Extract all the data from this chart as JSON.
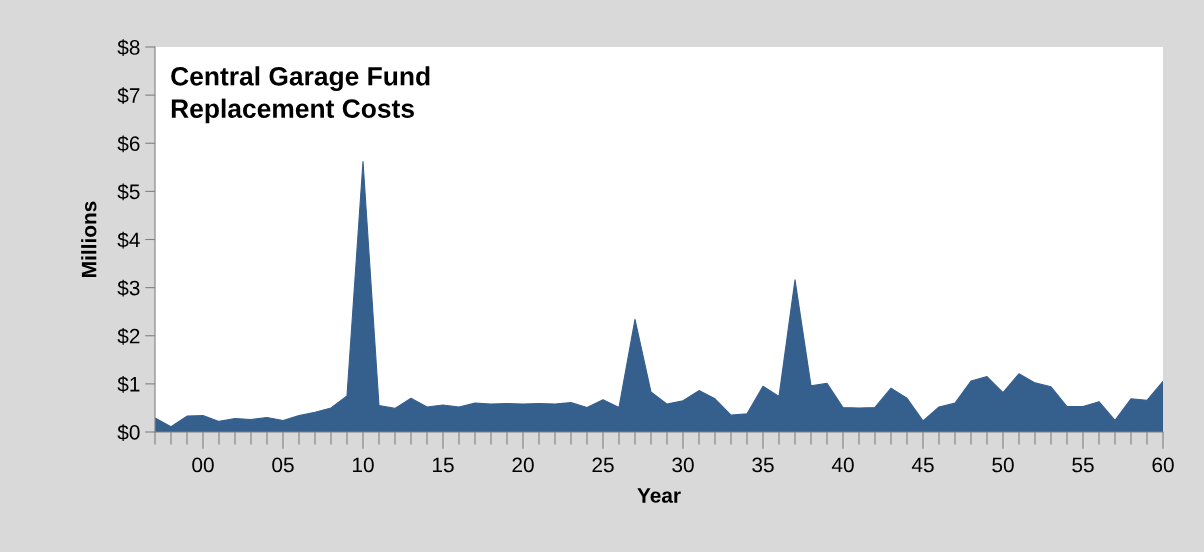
{
  "chart_data": {
    "type": "area",
    "title": "Central Garage Fund\nReplacement Costs",
    "xlabel": "Year",
    "ylabel": "Millions",
    "x": [
      1997,
      1998,
      1999,
      2000,
      2001,
      2002,
      2003,
      2004,
      2005,
      2006,
      2007,
      2008,
      2009,
      2010,
      2011,
      2012,
      2013,
      2014,
      2015,
      2016,
      2017,
      2018,
      2019,
      2020,
      2021,
      2022,
      2023,
      2024,
      2025,
      2026,
      2027,
      2028,
      2029,
      2030,
      2031,
      2032,
      2033,
      2034,
      2035,
      2036,
      2037,
      2038,
      2039,
      2040,
      2041,
      2042,
      2043,
      2044,
      2045,
      2046,
      2047,
      2048,
      2049,
      2050,
      2051,
      2052,
      2053,
      2054,
      2055,
      2056,
      2057,
      2058,
      2059,
      2060
    ],
    "values": [
      0.29,
      0.11,
      0.33,
      0.34,
      0.22,
      0.28,
      0.26,
      0.3,
      0.24,
      0.34,
      0.41,
      0.5,
      0.75,
      5.62,
      0.55,
      0.49,
      0.7,
      0.52,
      0.56,
      0.52,
      0.6,
      0.58,
      0.59,
      0.58,
      0.59,
      0.58,
      0.61,
      0.51,
      0.67,
      0.51,
      2.34,
      0.83,
      0.58,
      0.65,
      0.86,
      0.69,
      0.35,
      0.38,
      0.95,
      0.74,
      3.16,
      0.96,
      1.01,
      0.51,
      0.5,
      0.51,
      0.91,
      0.7,
      0.23,
      0.52,
      0.6,
      1.06,
      1.15,
      0.82,
      1.21,
      1.02,
      0.94,
      0.53,
      0.53,
      0.63,
      0.24,
      0.69,
      0.66,
      1.05
    ],
    "color": "#355f8d",
    "xlim": [
      1997,
      2060
    ],
    "xticks": [
      {
        "value": 1997,
        "label": null
      },
      {
        "value": 1998,
        "label": null
      },
      {
        "value": 1999,
        "label": null
      },
      {
        "value": 2000,
        "label": "00"
      },
      {
        "value": 2001,
        "label": null
      },
      {
        "value": 2002,
        "label": null
      },
      {
        "value": 2003,
        "label": null
      },
      {
        "value": 2004,
        "label": null
      },
      {
        "value": 2005,
        "label": "05"
      },
      {
        "value": 2006,
        "label": null
      },
      {
        "value": 2007,
        "label": null
      },
      {
        "value": 2008,
        "label": null
      },
      {
        "value": 2009,
        "label": null
      },
      {
        "value": 2010,
        "label": "10"
      },
      {
        "value": 2011,
        "label": null
      },
      {
        "value": 2012,
        "label": null
      },
      {
        "value": 2013,
        "label": null
      },
      {
        "value": 2014,
        "label": null
      },
      {
        "value": 2015,
        "label": "15"
      },
      {
        "value": 2016,
        "label": null
      },
      {
        "value": 2017,
        "label": null
      },
      {
        "value": 2018,
        "label": null
      },
      {
        "value": 2019,
        "label": null
      },
      {
        "value": 2020,
        "label": "20"
      },
      {
        "value": 2021,
        "label": null
      },
      {
        "value": 2022,
        "label": null
      },
      {
        "value": 2023,
        "label": null
      },
      {
        "value": 2024,
        "label": null
      },
      {
        "value": 2025,
        "label": "25"
      },
      {
        "value": 2026,
        "label": null
      },
      {
        "value": 2027,
        "label": null
      },
      {
        "value": 2028,
        "label": null
      },
      {
        "value": 2029,
        "label": null
      },
      {
        "value": 2030,
        "label": "30"
      },
      {
        "value": 2031,
        "label": null
      },
      {
        "value": 2032,
        "label": null
      },
      {
        "value": 2033,
        "label": null
      },
      {
        "value": 2034,
        "label": null
      },
      {
        "value": 2035,
        "label": "35"
      },
      {
        "value": 2036,
        "label": null
      },
      {
        "value": 2037,
        "label": null
      },
      {
        "value": 2038,
        "label": null
      },
      {
        "value": 2039,
        "label": null
      },
      {
        "value": 2040,
        "label": "40"
      },
      {
        "value": 2041,
        "label": null
      },
      {
        "value": 2042,
        "label": null
      },
      {
        "value": 2043,
        "label": null
      },
      {
        "value": 2044,
        "label": null
      },
      {
        "value": 2045,
        "label": "45"
      },
      {
        "value": 2046,
        "label": null
      },
      {
        "value": 2047,
        "label": null
      },
      {
        "value": 2048,
        "label": null
      },
      {
        "value": 2049,
        "label": null
      },
      {
        "value": 2050,
        "label": "50"
      },
      {
        "value": 2051,
        "label": null
      },
      {
        "value": 2052,
        "label": null
      },
      {
        "value": 2053,
        "label": null
      },
      {
        "value": 2054,
        "label": null
      },
      {
        "value": 2055,
        "label": "55"
      },
      {
        "value": 2056,
        "label": null
      },
      {
        "value": 2057,
        "label": null
      },
      {
        "value": 2058,
        "label": null
      },
      {
        "value": 2059,
        "label": null
      },
      {
        "value": 2060,
        "label": "60"
      }
    ],
    "ylim": [
      0,
      8
    ],
    "yticks": [
      {
        "value": 0,
        "label": "$0"
      },
      {
        "value": 1,
        "label": "$1"
      },
      {
        "value": 2,
        "label": "$2"
      },
      {
        "value": 3,
        "label": "$3"
      },
      {
        "value": 4,
        "label": "$4"
      },
      {
        "value": 5,
        "label": "$5"
      },
      {
        "value": 6,
        "label": "$6"
      },
      {
        "value": 7,
        "label": "$7"
      },
      {
        "value": 8,
        "label": "$8"
      }
    ],
    "grid": false,
    "legend": false
  }
}
